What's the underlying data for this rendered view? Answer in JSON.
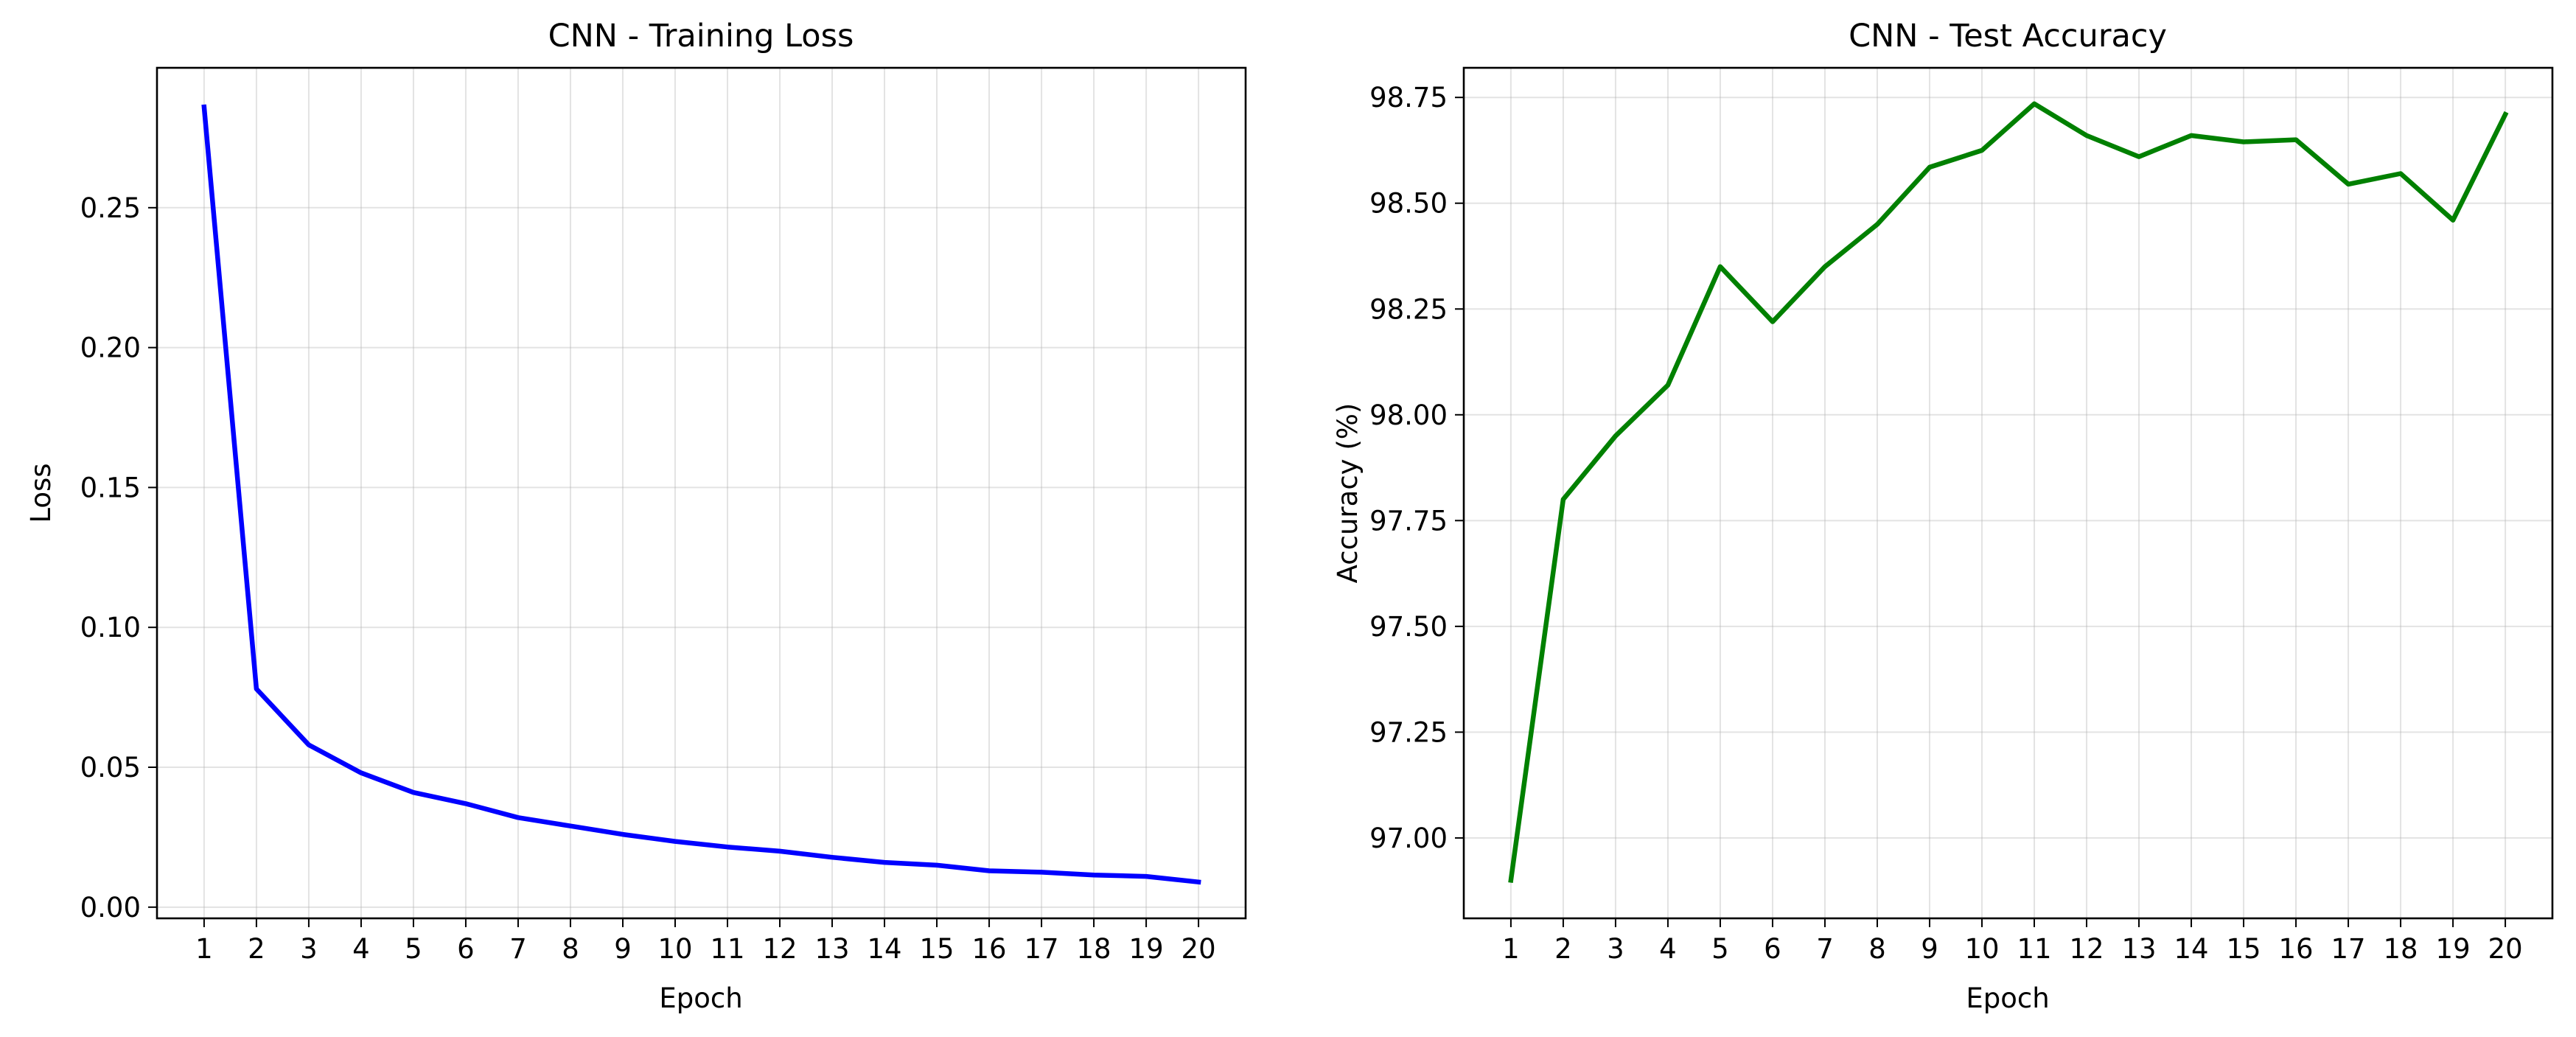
{
  "chart_data": [
    {
      "type": "line",
      "title": "CNN - Training Loss",
      "xlabel": "Epoch",
      "ylabel": "Loss",
      "grid": true,
      "xlim": [
        0.1,
        20.9
      ],
      "ylim": [
        -0.004,
        0.3
      ],
      "x": [
        1,
        2,
        3,
        4,
        5,
        6,
        7,
        8,
        9,
        10,
        11,
        12,
        13,
        14,
        15,
        16,
        17,
        18,
        19,
        20
      ],
      "x_ticks": [
        "1",
        "2",
        "3",
        "4",
        "5",
        "6",
        "7",
        "8",
        "9",
        "10",
        "11",
        "12",
        "13",
        "14",
        "15",
        "16",
        "17",
        "18",
        "19",
        "20"
      ],
      "y_ticks": [
        {
          "value": 0.0,
          "label": "0.00"
        },
        {
          "value": 0.05,
          "label": "0.05"
        },
        {
          "value": 0.1,
          "label": "0.10"
        },
        {
          "value": 0.15,
          "label": "0.15"
        },
        {
          "value": 0.2,
          "label": "0.20"
        },
        {
          "value": 0.25,
          "label": "0.25"
        }
      ],
      "series": [
        {
          "color": "#0000ff",
          "values": [
            0.286,
            0.078,
            0.058,
            0.048,
            0.041,
            0.037,
            0.032,
            0.029,
            0.026,
            0.0235,
            0.0215,
            0.02,
            0.0178,
            0.016,
            0.015,
            0.013,
            0.0125,
            0.0115,
            0.011,
            0.009
          ]
        }
      ]
    },
    {
      "type": "line",
      "title": "CNN - Test Accuracy",
      "xlabel": "Epoch",
      "ylabel": "Accuracy (%)",
      "grid": true,
      "xlim": [
        0.1,
        20.9
      ],
      "ylim": [
        96.81,
        98.82
      ],
      "x": [
        1,
        2,
        3,
        4,
        5,
        6,
        7,
        8,
        9,
        10,
        11,
        12,
        13,
        14,
        15,
        16,
        17,
        18,
        19,
        20
      ],
      "x_ticks": [
        "1",
        "2",
        "3",
        "4",
        "5",
        "6",
        "7",
        "8",
        "9",
        "10",
        "11",
        "12",
        "13",
        "14",
        "15",
        "16",
        "17",
        "18",
        "19",
        "20"
      ],
      "y_ticks": [
        {
          "value": 97.0,
          "label": "97.00"
        },
        {
          "value": 97.25,
          "label": "97.25"
        },
        {
          "value": 97.5,
          "label": "97.50"
        },
        {
          "value": 97.75,
          "label": "97.75"
        },
        {
          "value": 98.0,
          "label": "98.00"
        },
        {
          "value": 98.25,
          "label": "98.25"
        },
        {
          "value": 98.5,
          "label": "98.50"
        },
        {
          "value": 98.75,
          "label": "98.75"
        }
      ],
      "series": [
        {
          "color": "#008000",
          "values": [
            96.9,
            97.8,
            97.95,
            98.07,
            98.35,
            98.22,
            98.35,
            98.45,
            98.585,
            98.625,
            98.735,
            98.66,
            98.61,
            98.66,
            98.645,
            98.65,
            98.545,
            98.57,
            98.46,
            98.71
          ]
        }
      ]
    }
  ]
}
